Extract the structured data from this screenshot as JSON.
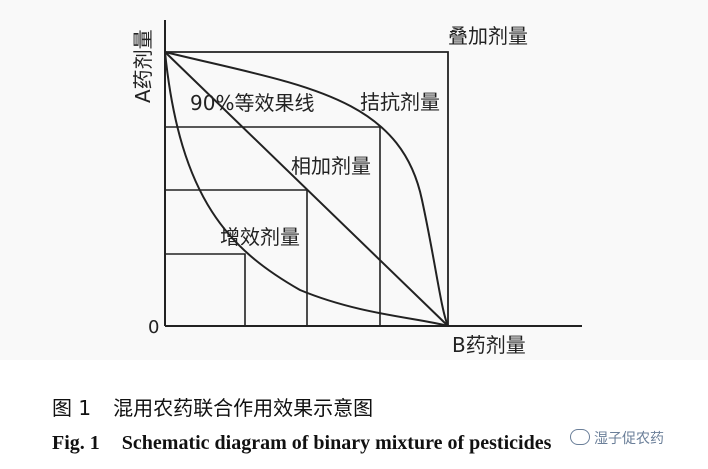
{
  "diagram": {
    "y_axis_label": "A药剂量",
    "x_axis_label": "B药剂量",
    "origin_label": "0",
    "labels": {
      "superposition": "叠加剂量",
      "antagonism": "拮抗剂量",
      "isobole_90": "90%等效果线",
      "additive": "相加剂量",
      "synergism": "增效剂量"
    }
  },
  "caption": {
    "cn_number": "图 1",
    "cn_text": "混用农药联合作用效果示意图",
    "en_number": "Fig. 1",
    "en_text": "Schematic diagram of binary mixture of pesticides"
  },
  "watermark": {
    "text": "湿子促农药",
    "icon": "wechat-icon"
  }
}
